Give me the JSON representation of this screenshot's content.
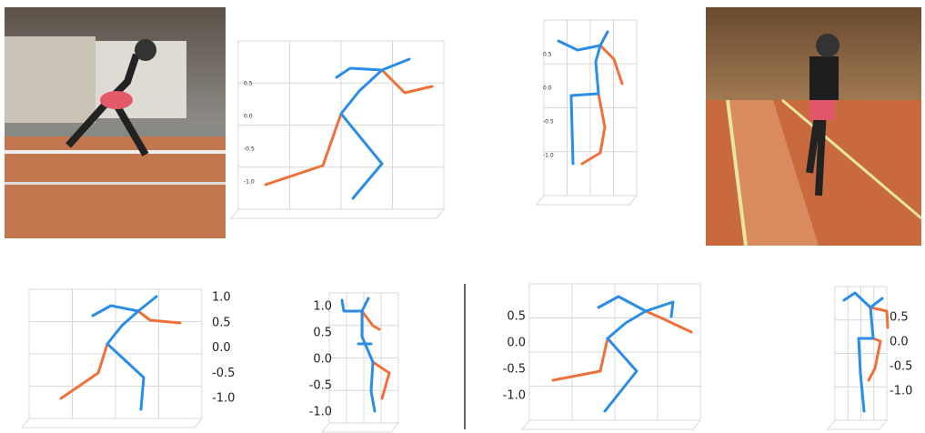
{
  "plots": [
    {
      "ticks": [
        "0.5",
        "0.0",
        "-0.5",
        "-1.0"
      ]
    },
    {
      "ticks": [
        "0.5",
        "0.0",
        "-0.5",
        "-1.0"
      ]
    },
    {
      "ticks": [
        "1.0",
        "0.5",
        "0.0",
        "-0.5",
        "-1.0"
      ]
    },
    {
      "ticks": [
        "1.0",
        "0.5",
        "0.0",
        "-0.5",
        "-1.0"
      ]
    },
    {
      "ticks": [
        "0.5",
        "0.0",
        "-0.5",
        "-1.0"
      ]
    },
    {
      "ticks": [
        "0.5",
        "0.0",
        "-0.5",
        "-1.0"
      ]
    }
  ]
}
